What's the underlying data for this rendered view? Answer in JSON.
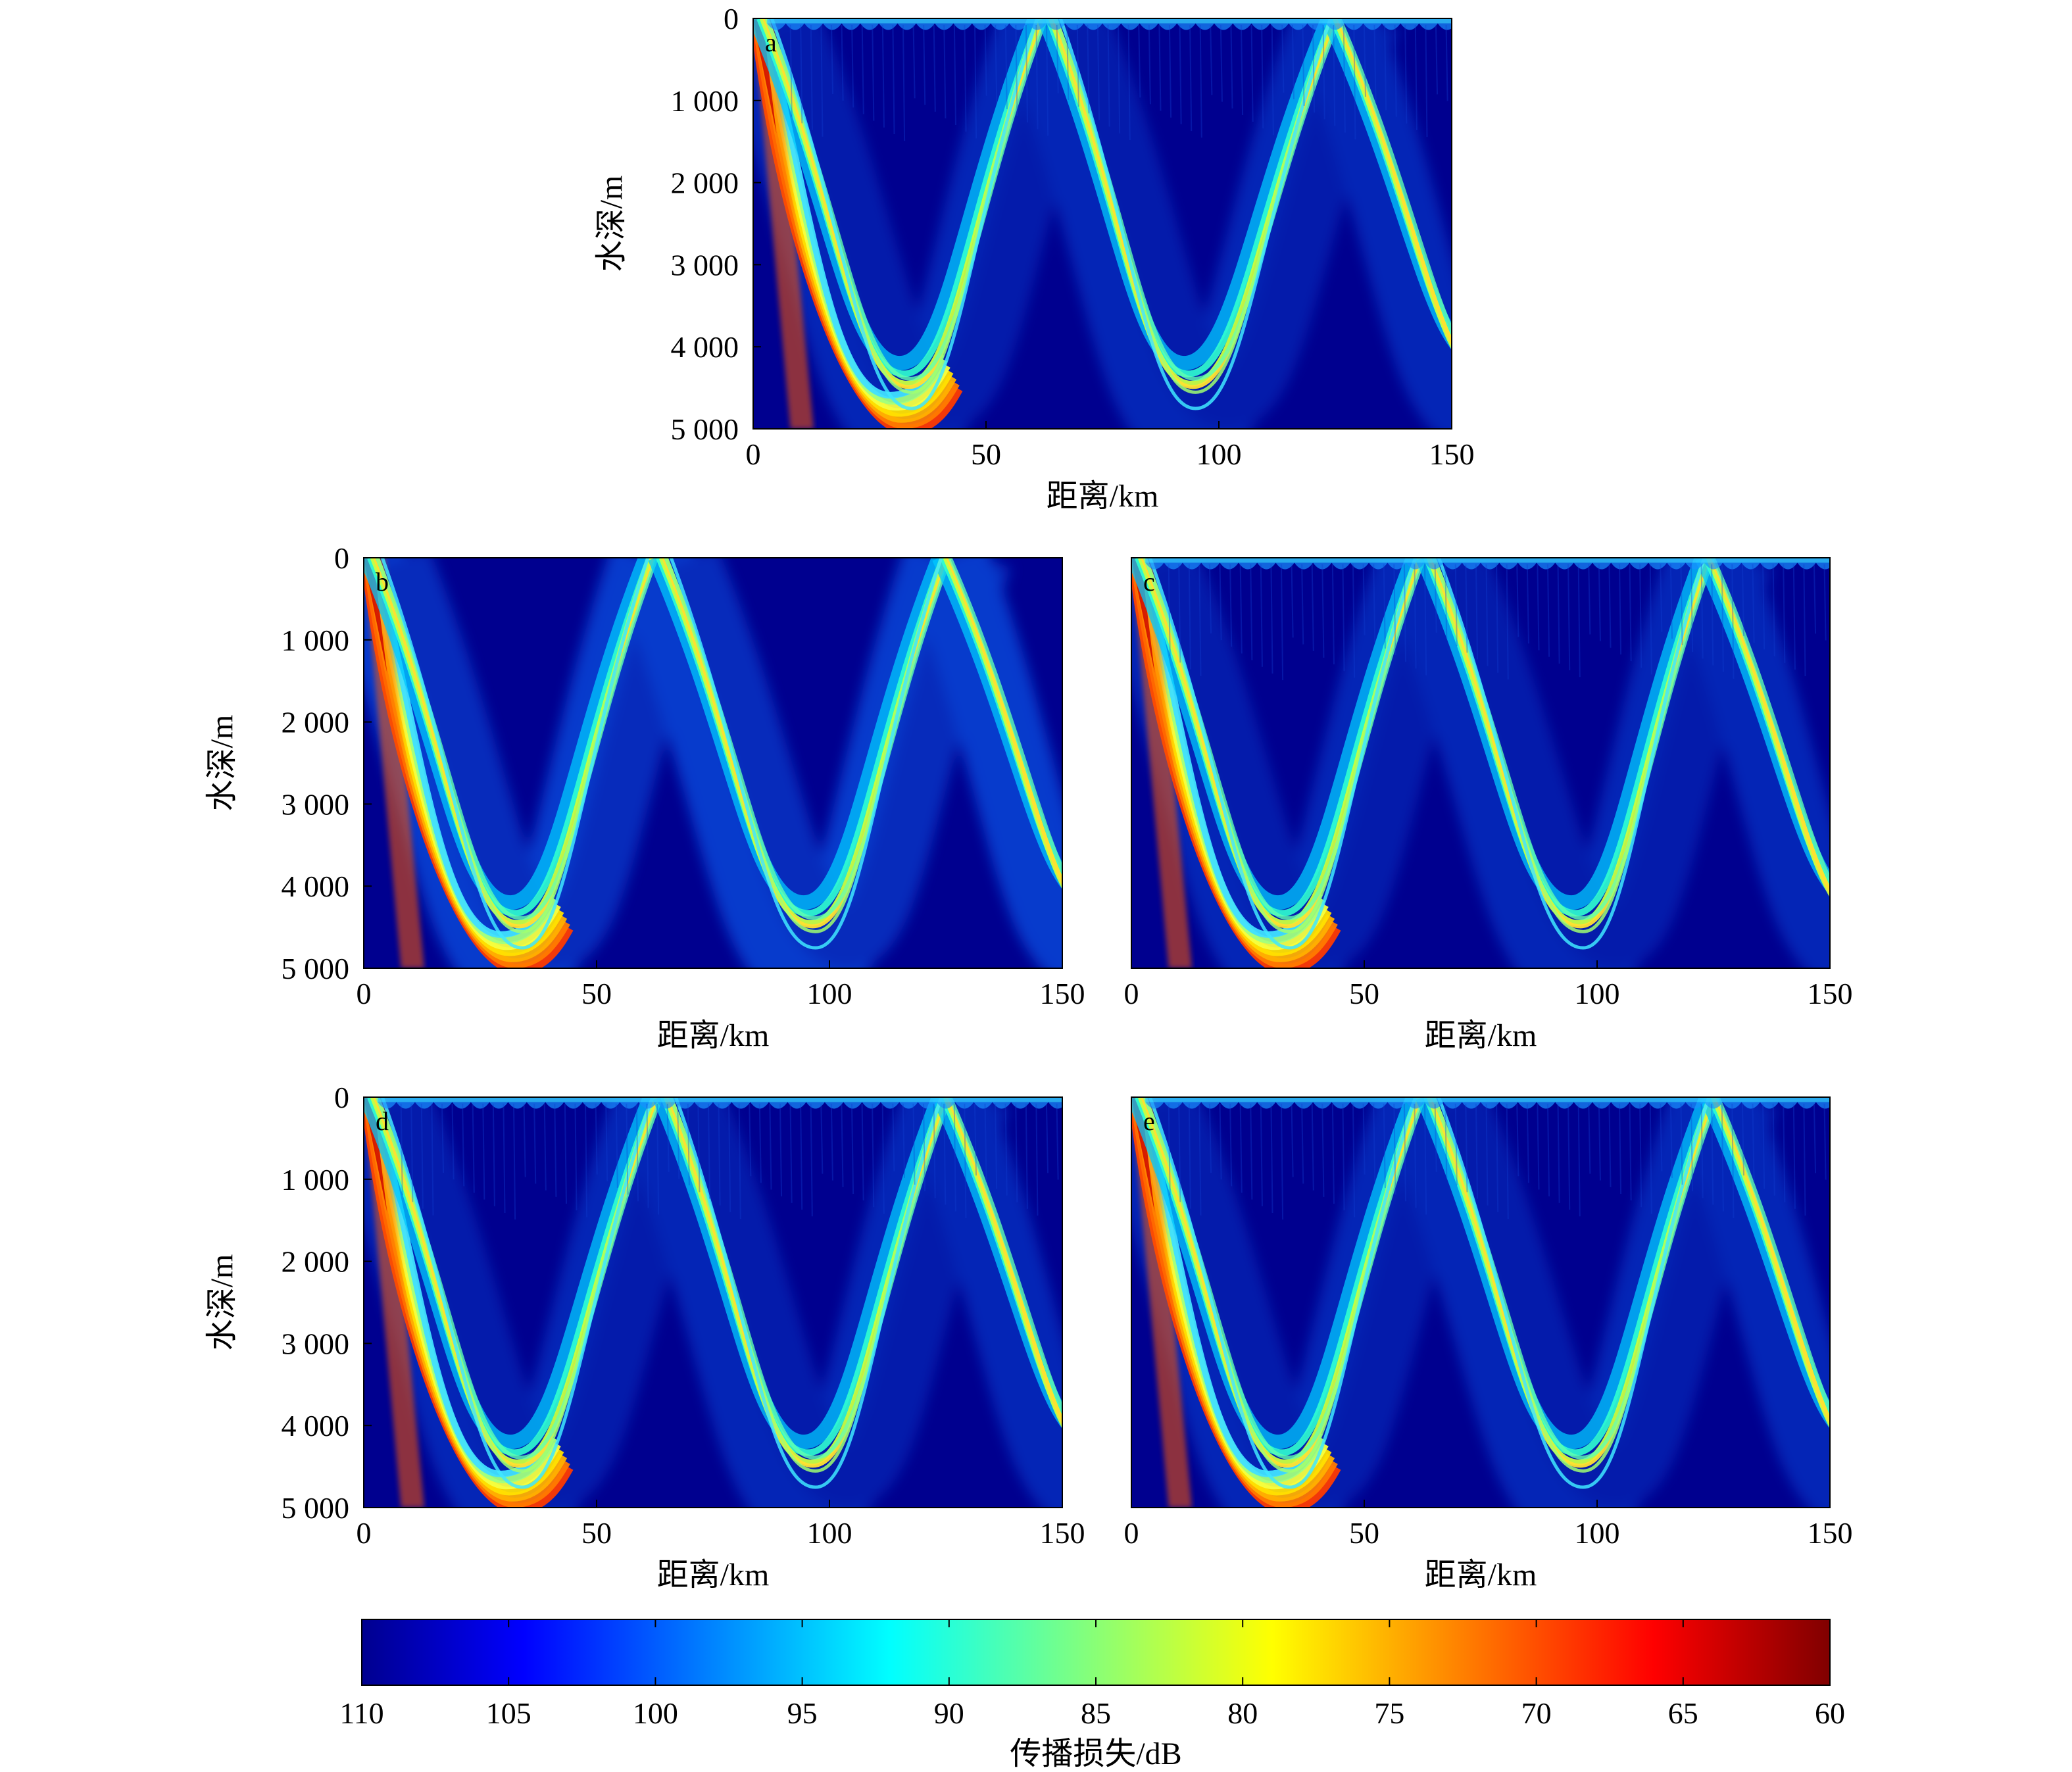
{
  "chart_data": [
    {
      "type": "heatmap",
      "panel": "a",
      "xlabel": "距离/km",
      "ylabel": "水深/m",
      "xlim": [
        0,
        150
      ],
      "ylim": [
        5000,
        0
      ],
      "xticks": [
        "0",
        "50",
        "100",
        "150"
      ],
      "yticks": [
        "0",
        "1 000",
        "2 000",
        "3 000",
        "4 000",
        "5 000"
      ],
      "convergence_zone_ranges_km": [
        0,
        62,
        125
      ],
      "caustic_bottom_ranges_km": [
        33,
        94
      ],
      "surface_duct": true,
      "background_loss_db": 110,
      "peak_loss_db": 72
    },
    {
      "type": "heatmap",
      "panel": "b",
      "xlabel": "距离/km",
      "ylabel": "水深/m",
      "xlim": [
        0,
        150
      ],
      "ylim": [
        5000,
        0
      ],
      "xticks": [
        "0",
        "50",
        "100",
        "150"
      ],
      "yticks": [
        "0",
        "1 000",
        "2 000",
        "3 000",
        "4 000",
        "5 000"
      ],
      "convergence_zone_ranges_km": [
        0,
        62,
        125
      ],
      "caustic_bottom_ranges_km": [
        33,
        96
      ],
      "surface_duct": false,
      "background_loss_db": 105,
      "peak_loss_db": 72
    },
    {
      "type": "heatmap",
      "panel": "c",
      "xlabel": "距离/km",
      "ylabel": "",
      "xlim": [
        0,
        150
      ],
      "ylim": [
        5000,
        0
      ],
      "xticks": [
        "0",
        "50",
        "100",
        "150"
      ],
      "yticks": [],
      "convergence_zone_ranges_km": [
        0,
        62,
        124
      ],
      "caustic_bottom_ranges_km": [
        33,
        96
      ],
      "surface_duct": true,
      "background_loss_db": 110,
      "peak_loss_db": 72
    },
    {
      "type": "heatmap",
      "panel": "d",
      "xlabel": "距离/km",
      "ylabel": "水深/m",
      "xlim": [
        0,
        150
      ],
      "ylim": [
        5000,
        0
      ],
      "xticks": [
        "0",
        "50",
        "100",
        "150"
      ],
      "yticks": [
        "0",
        "1 000",
        "2 000",
        "3 000",
        "4 000",
        "5 000"
      ],
      "convergence_zone_ranges_km": [
        0,
        63,
        125
      ],
      "caustic_bottom_ranges_km": [
        33,
        96
      ],
      "surface_duct": true,
      "background_loss_db": 108,
      "peak_loss_db": 72
    },
    {
      "type": "heatmap",
      "panel": "e",
      "xlabel": "距离/km",
      "ylabel": "",
      "xlim": [
        0,
        150
      ],
      "ylim": [
        5000,
        0
      ],
      "xticks": [
        "0",
        "50",
        "100",
        "150"
      ],
      "yticks": [],
      "convergence_zone_ranges_km": [
        0,
        62,
        125
      ],
      "caustic_bottom_ranges_km": [
        33,
        96
      ],
      "surface_duct": true,
      "background_loss_db": 108,
      "peak_loss_db": 72
    }
  ],
  "colorbar": {
    "label": "传播损失/dB",
    "range": [
      110,
      60
    ],
    "ticks": [
      "110",
      "105",
      "100",
      "95",
      "90",
      "85",
      "80",
      "75",
      "70",
      "65",
      "60"
    ],
    "colormap": "jet-reversed"
  },
  "colors": {
    "background": "#00008f",
    "jet": [
      "#00008f",
      "#0000ff",
      "#0080ff",
      "#00ffff",
      "#80ff80",
      "#ffff00",
      "#ff8000",
      "#ff0000",
      "#800000"
    ]
  }
}
